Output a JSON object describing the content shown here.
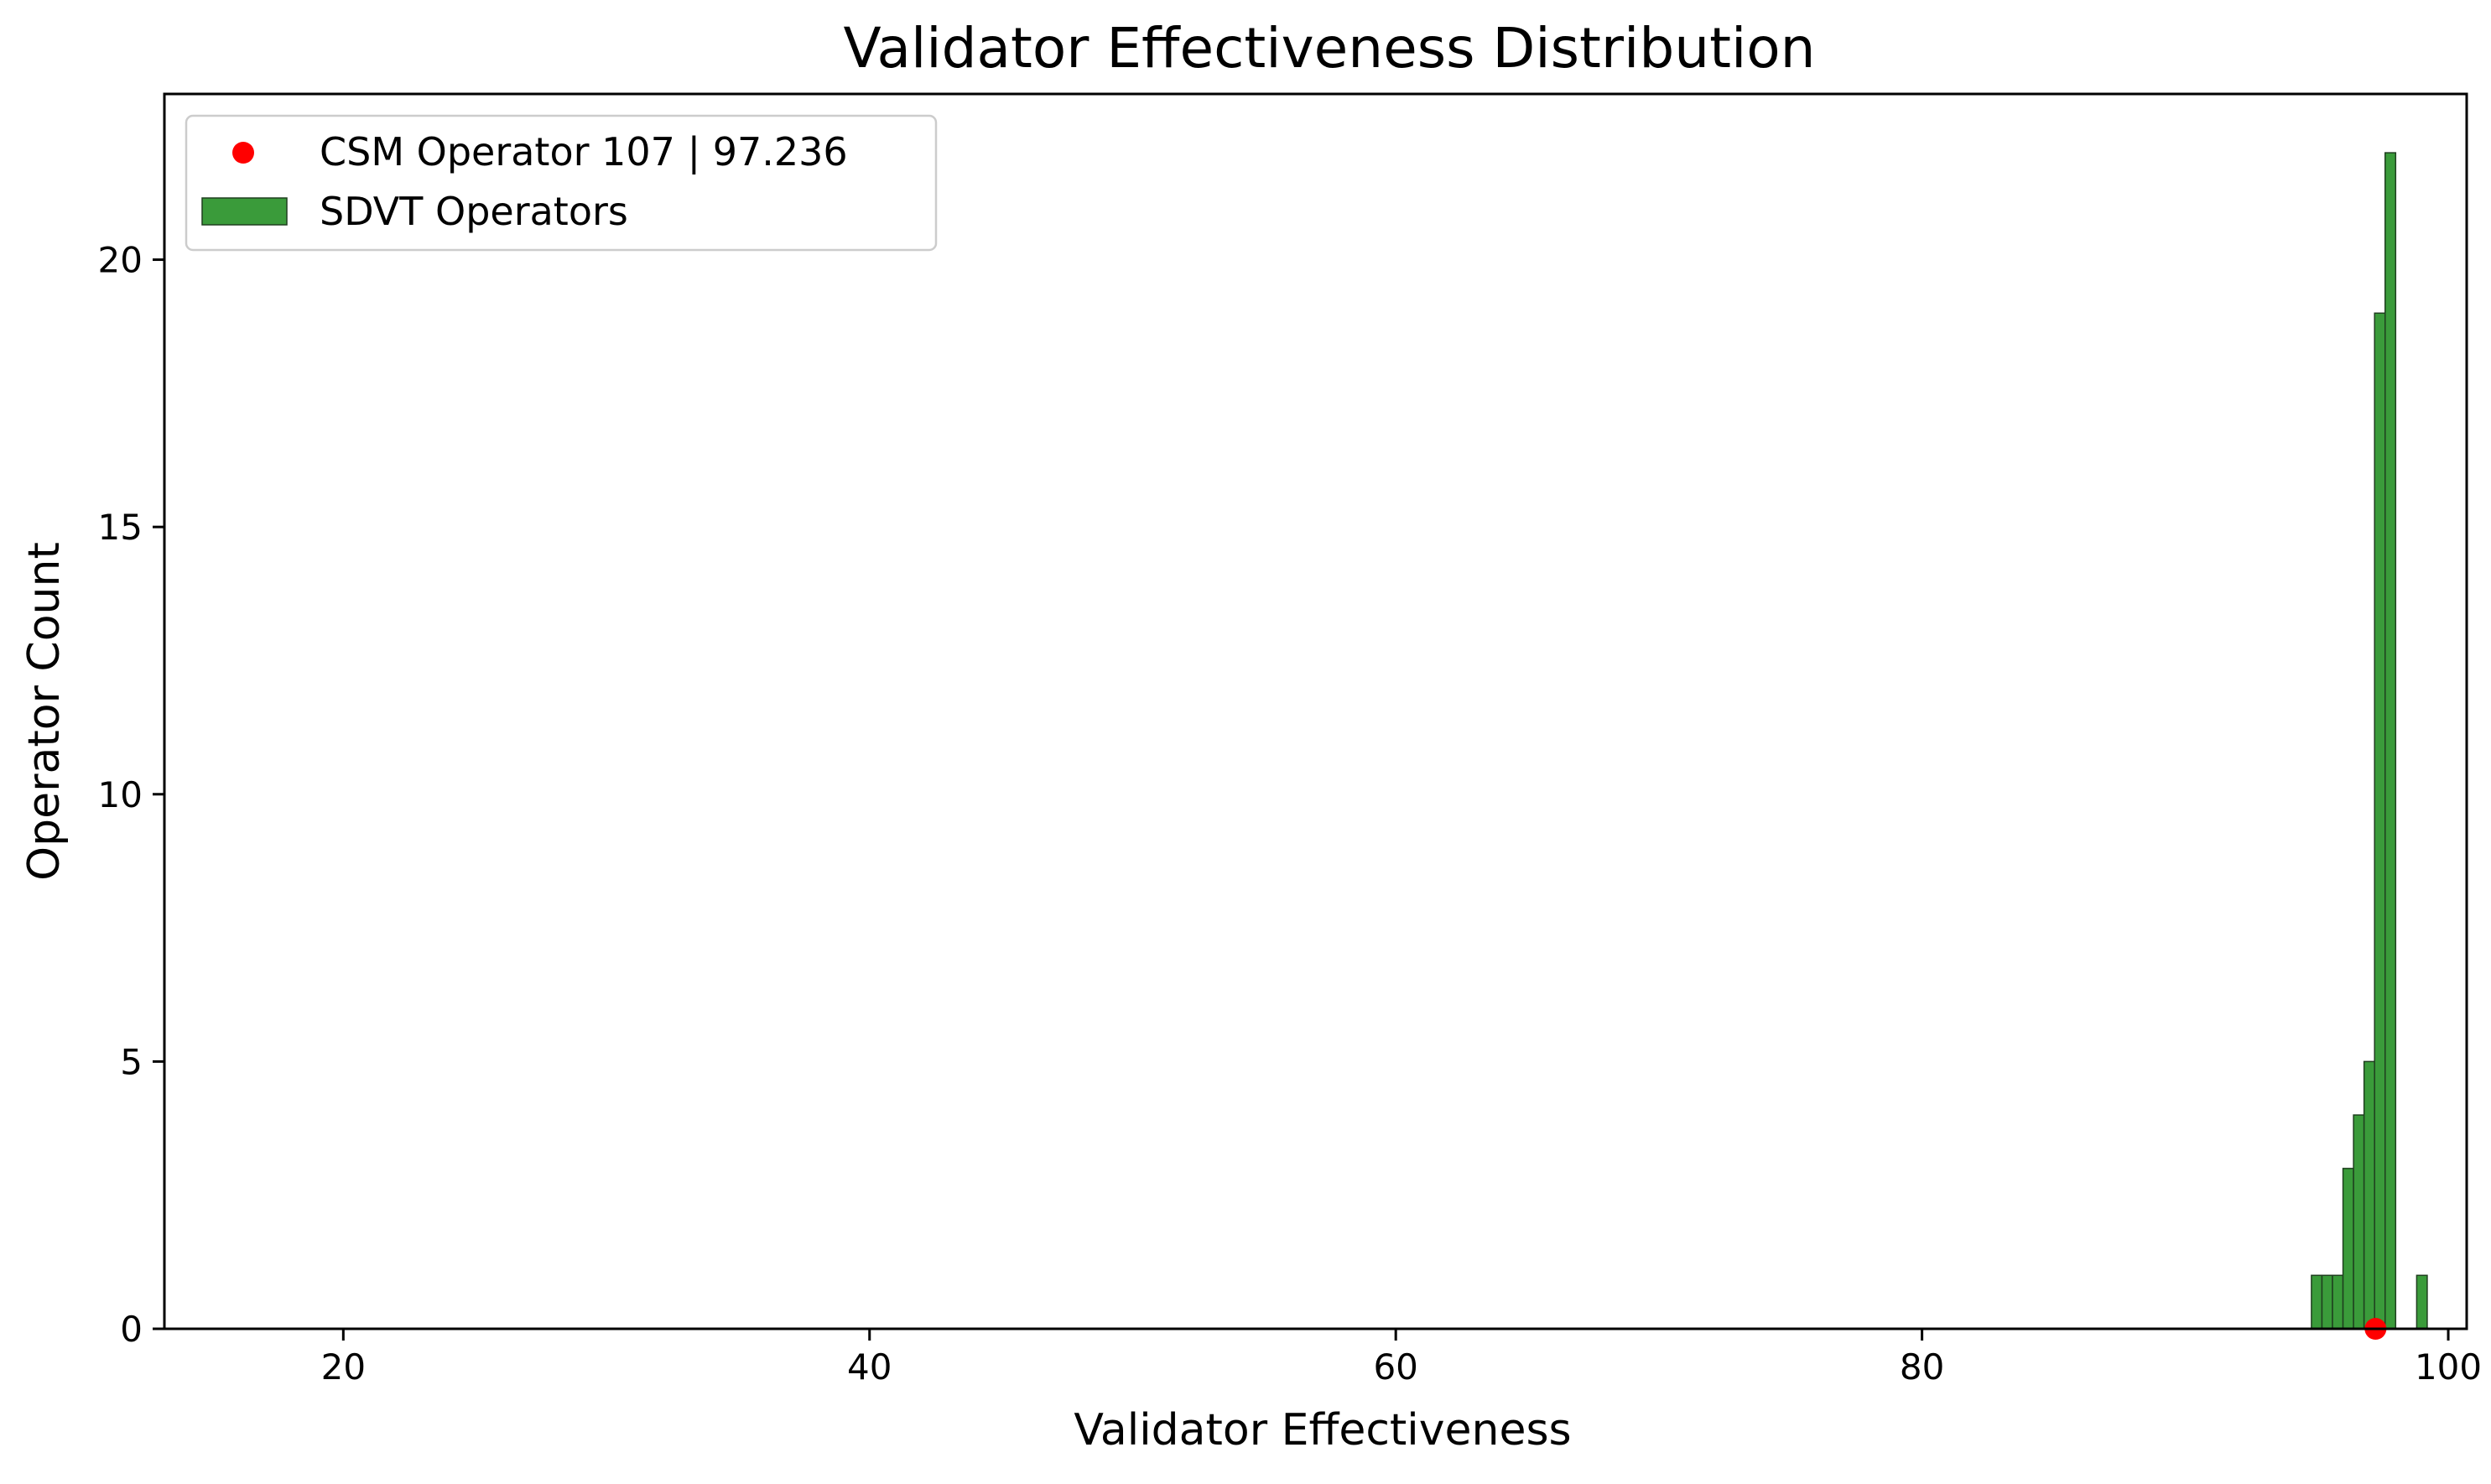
{
  "chart_data": {
    "type": "bar",
    "title": "Validator Effectiveness Distribution",
    "xlabel": "Validator Effectiveness",
    "ylabel": "Operator Count",
    "xlim": [
      13.2,
      100.7
    ],
    "ylim": [
      0,
      23.1
    ],
    "xticks": [
      20,
      40,
      60,
      80,
      100
    ],
    "yticks": [
      0,
      5,
      10,
      15,
      20
    ],
    "grid": false,
    "legend_position": "top-left",
    "colors": {
      "bars": "#3a9b3a",
      "bar_edge": "#1f3f1f",
      "marker": "#ff0000",
      "axes": "#000000"
    },
    "series": [
      {
        "name": "CSM Operator 107  |  97.236",
        "kind": "scatter",
        "x": [
          97.236
        ],
        "y": [
          0
        ]
      },
      {
        "name": "SDVT Operators",
        "kind": "histogram",
        "bin_edges": [
          94.8,
          95.2,
          95.6,
          96.0,
          96.4,
          96.8,
          97.2,
          97.6,
          98.0,
          98.4,
          98.8,
          99.2
        ],
        "counts": [
          1,
          1,
          1,
          3,
          4,
          5,
          19,
          22,
          0,
          0,
          1
        ]
      }
    ]
  }
}
